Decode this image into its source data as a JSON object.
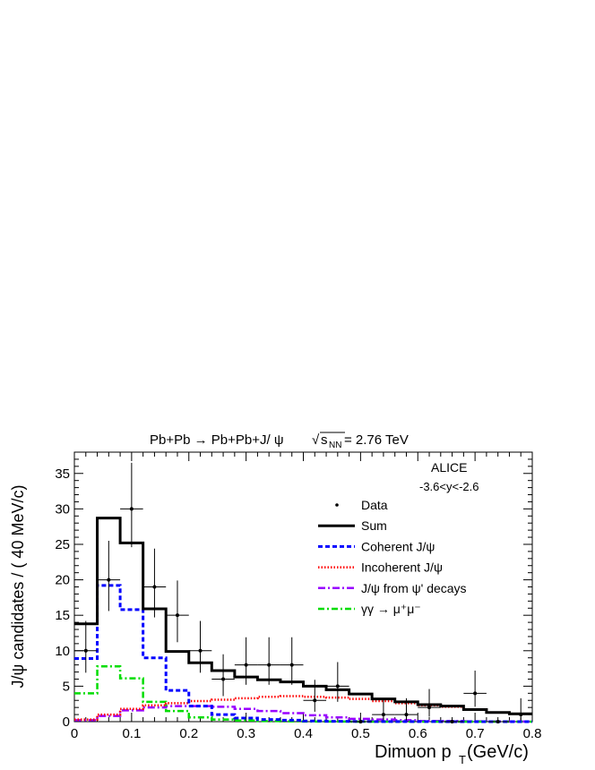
{
  "chart_data": {
    "type": "bar",
    "title_parts": {
      "reaction": "Pb+Pb → Pb+Pb+J/ ψ",
      "sqrt": "√",
      "s": "s",
      "nn": "NN",
      "energy": " = 2.76 TeV"
    },
    "xlabel_main": "Dimuon p",
    "xlabel_sub": "T",
    "xlabel_unit": "(GeV/c)",
    "ylabel": "J/ψ candidates / ( 40 MeV/c)",
    "xlim": [
      0,
      0.8
    ],
    "ylim": [
      0,
      38
    ],
    "xticks": [
      0,
      0.1,
      0.2,
      0.3,
      0.4,
      0.5,
      0.6,
      0.7,
      0.8
    ],
    "xtick_labels": [
      "0",
      "0.1",
      "0.2",
      "0.3",
      "0.4",
      "0.5",
      "0.6",
      "0.7",
      "0.8"
    ],
    "yticks": [
      0,
      5,
      10,
      15,
      20,
      25,
      30,
      35
    ],
    "ytick_labels": [
      "0",
      "5",
      "10",
      "15",
      "20",
      "25",
      "30",
      "35"
    ],
    "bin_width": 0.04,
    "bin_edges": [
      0,
      0.04,
      0.08,
      0.12,
      0.16,
      0.2,
      0.24,
      0.28,
      0.32,
      0.36,
      0.4,
      0.44,
      0.48,
      0.52,
      0.56,
      0.6,
      0.64,
      0.68,
      0.72,
      0.76,
      0.8
    ],
    "annotations": {
      "experiment": "ALICE",
      "rapidity": "-3.6<y<-2.6"
    },
    "legend": {
      "placement": "top-right",
      "entries": [
        {
          "label": "Data",
          "style": "marker"
        },
        {
          "label": "Sum",
          "style": "solid",
          "color": "#000000"
        },
        {
          "label": "Coherent J/ψ",
          "style": "dashed",
          "color": "#0000ff"
        },
        {
          "label": "Incoherent J/ψ",
          "style": "dotted",
          "color": "#ff0000"
        },
        {
          "label": "J/ψ from ψ' decays",
          "style": "dashdot",
          "color": "#9900ff"
        },
        {
          "label": "γγ → μ⁺μ⁻",
          "style": "dashdot",
          "color": "#00dd00"
        }
      ]
    },
    "data_points": {
      "name": "Data",
      "x": [
        0.02,
        0.06,
        0.1,
        0.14,
        0.18,
        0.22,
        0.26,
        0.3,
        0.34,
        0.38,
        0.42,
        0.46,
        0.5,
        0.54,
        0.58,
        0.62,
        0.66,
        0.7,
        0.74,
        0.78
      ],
      "y": [
        10,
        20,
        30,
        19,
        15,
        10,
        6,
        8,
        8,
        8,
        3,
        5,
        0,
        1,
        1,
        2,
        0,
        4,
        0,
        1
      ],
      "yerr_low": [
        3.1,
        4.4,
        5.4,
        4.3,
        3.8,
        3.1,
        2.4,
        2.8,
        2.8,
        2.8,
        1.6,
        2.2,
        0,
        0.8,
        0.8,
        1.3,
        0,
        1.9,
        0,
        0.8
      ],
      "yerr_high": [
        4.2,
        5.5,
        6.5,
        5.4,
        4.9,
        4.2,
        3.5,
        3.9,
        3.9,
        3.9,
        2.9,
        3.4,
        0,
        2.3,
        2.3,
        2.6,
        0,
        3.2,
        0,
        2.3
      ]
    },
    "series": [
      {
        "name": "Sum",
        "values": [
          13.8,
          28.7,
          25.2,
          15.9,
          9.9,
          8.3,
          7.2,
          6.3,
          5.9,
          5.6,
          5.0,
          4.5,
          3.9,
          3.2,
          2.8,
          2.4,
          2.2,
          1.7,
          1.3,
          1.1
        ]
      },
      {
        "name": "Coherent J/ψ",
        "values": [
          8.9,
          19.2,
          15.8,
          9.0,
          4.4,
          2.2,
          1.0,
          0.5,
          0.3,
          0.2,
          0.1,
          0.05,
          0.03,
          0.02,
          0.01,
          0.01,
          0.0,
          0.0,
          0.0,
          0.0
        ]
      },
      {
        "name": "Incoherent J/ψ",
        "values": [
          0.3,
          1.0,
          1.8,
          2.3,
          2.6,
          2.9,
          3.1,
          3.3,
          3.5,
          3.6,
          3.5,
          3.4,
          3.2,
          2.9,
          2.6,
          2.3,
          2.1,
          1.7,
          1.3,
          1.1
        ]
      },
      {
        "name": "J/ψ from ψ' decays",
        "values": [
          0.2,
          0.8,
          1.6,
          2.0,
          2.2,
          2.2,
          2.1,
          1.8,
          1.5,
          1.2,
          0.9,
          0.6,
          0.4,
          0.3,
          0.2,
          0.1,
          0.1,
          0.05,
          0.03,
          0.02
        ]
      },
      {
        "name": "γγ → μ⁺μ⁻",
        "values": [
          4.0,
          7.8,
          6.1,
          2.8,
          1.5,
          0.6,
          0.3,
          0.15,
          0.08,
          0.04,
          0.02,
          0.01,
          0.0,
          0.0,
          0.0,
          0.0,
          0.0,
          0.0,
          0.0,
          0.0
        ]
      }
    ]
  }
}
